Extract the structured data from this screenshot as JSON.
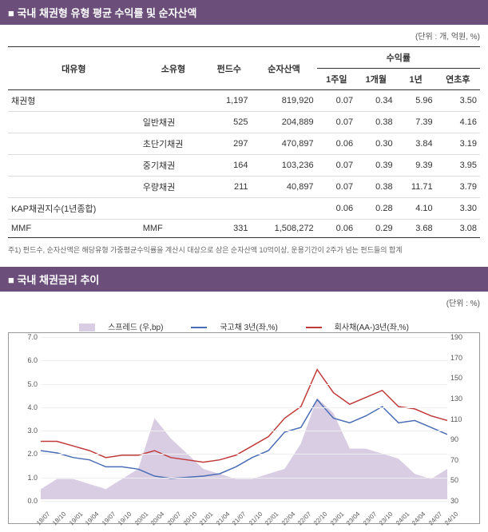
{
  "section1": {
    "title": "국내 채권형 유형 평균 수익률 및 순자산액",
    "unit": "(단위 : 개, 억원, %)",
    "headers": {
      "대유형": "대유형",
      "소유형": "소유형",
      "펀드수": "펀드수",
      "순자산액": "순자산액",
      "수익률": "수익률",
      "1주일": "1주일",
      "1개월": "1개월",
      "1년": "1년",
      "연초후": "연초후"
    },
    "rows": [
      {
        "대": "채권형",
        "소": "",
        "펀드": "1,197",
        "순자": "819,920",
        "w": "0.07",
        "m": "0.34",
        "y": "5.96",
        "ytd": "3.50"
      },
      {
        "대": "",
        "소": "일반채권",
        "펀드": "525",
        "순자": "204,889",
        "w": "0.07",
        "m": "0.38",
        "y": "7.39",
        "ytd": "4.16"
      },
      {
        "대": "",
        "소": "초단기채권",
        "펀드": "297",
        "순자": "470,897",
        "w": "0.06",
        "m": "0.30",
        "y": "3.84",
        "ytd": "3.19"
      },
      {
        "대": "",
        "소": "중기채권",
        "펀드": "164",
        "순자": "103,236",
        "w": "0.07",
        "m": "0.39",
        "y": "9.39",
        "ytd": "3.95"
      },
      {
        "대": "",
        "소": "우량채권",
        "펀드": "211",
        "순자": "40,897",
        "w": "0.07",
        "m": "0.38",
        "y": "11.71",
        "ytd": "3.79"
      },
      {
        "대": "KAP채권지수(1년종합)",
        "소": "",
        "펀드": "",
        "순자": "",
        "w": "0.06",
        "m": "0.28",
        "y": "4.10",
        "ytd": "3.30"
      },
      {
        "대": "MMF",
        "소": "MMF",
        "펀드": "331",
        "순자": "1,508,272",
        "w": "0.06",
        "m": "0.29",
        "y": "3.68",
        "ytd": "3.08"
      }
    ],
    "footnote": "주1) 펀드수, 순자산액은 해당유형 가중평균수익률을 계산시 대상으로 삼은 순자산액 10억이상, 운용기간이 2주가 넘는 펀드들의 합계"
  },
  "section2": {
    "title": "국내 채권금리 추이",
    "unit": "(단위 : %)",
    "legend": {
      "spread": "스프레드 (우,bp)",
      "ktb": "국고채 3년(좌,%)",
      "corp": "회사채(AA-)3년(좌,%)"
    },
    "colors": {
      "spread_fill": "#d8cde3",
      "ktb_line": "#4a6db5",
      "corp_line": "#c13a3a",
      "grid": "#eeeeee",
      "border": "#999999"
    },
    "y_left": {
      "min": 0,
      "max": 7,
      "ticks": [
        "0.0",
        "1.0",
        "2.0",
        "3.0",
        "4.0",
        "5.0",
        "6.0",
        "7.0"
      ]
    },
    "y_right": {
      "min": 30,
      "max": 190,
      "ticks": [
        "30",
        "50",
        "70",
        "90",
        "110",
        "130",
        "150",
        "170",
        "190"
      ]
    },
    "x_labels": [
      "18/07",
      "18/10",
      "19/01",
      "19/04",
      "19/07",
      "19/10",
      "20/01",
      "20/04",
      "20/07",
      "20/10",
      "21/01",
      "21/04",
      "21/07",
      "21/10",
      "22/01",
      "22/04",
      "22/07",
      "22/10",
      "23/01",
      "23/04",
      "23/07",
      "23/10",
      "24/01",
      "24/04",
      "24/07",
      "24/10"
    ],
    "ktb": [
      2.1,
      2.0,
      1.8,
      1.7,
      1.4,
      1.4,
      1.3,
      1.0,
      0.9,
      0.95,
      1.0,
      1.1,
      1.4,
      1.8,
      2.1,
      2.9,
      3.1,
      4.3,
      3.5,
      3.3,
      3.6,
      4.0,
      3.3,
      3.4,
      3.1,
      2.8
    ],
    "corp": [
      2.5,
      2.5,
      2.3,
      2.1,
      1.8,
      1.9,
      1.9,
      2.1,
      1.8,
      1.7,
      1.6,
      1.7,
      1.9,
      2.3,
      2.7,
      3.5,
      4.0,
      5.6,
      4.6,
      4.1,
      4.4,
      4.7,
      4.0,
      3.9,
      3.6,
      3.4
    ],
    "spread": [
      40,
      50,
      50,
      45,
      40,
      50,
      60,
      110,
      90,
      75,
      60,
      55,
      50,
      50,
      55,
      60,
      85,
      130,
      115,
      80,
      80,
      75,
      70,
      55,
      50,
      60
    ]
  }
}
